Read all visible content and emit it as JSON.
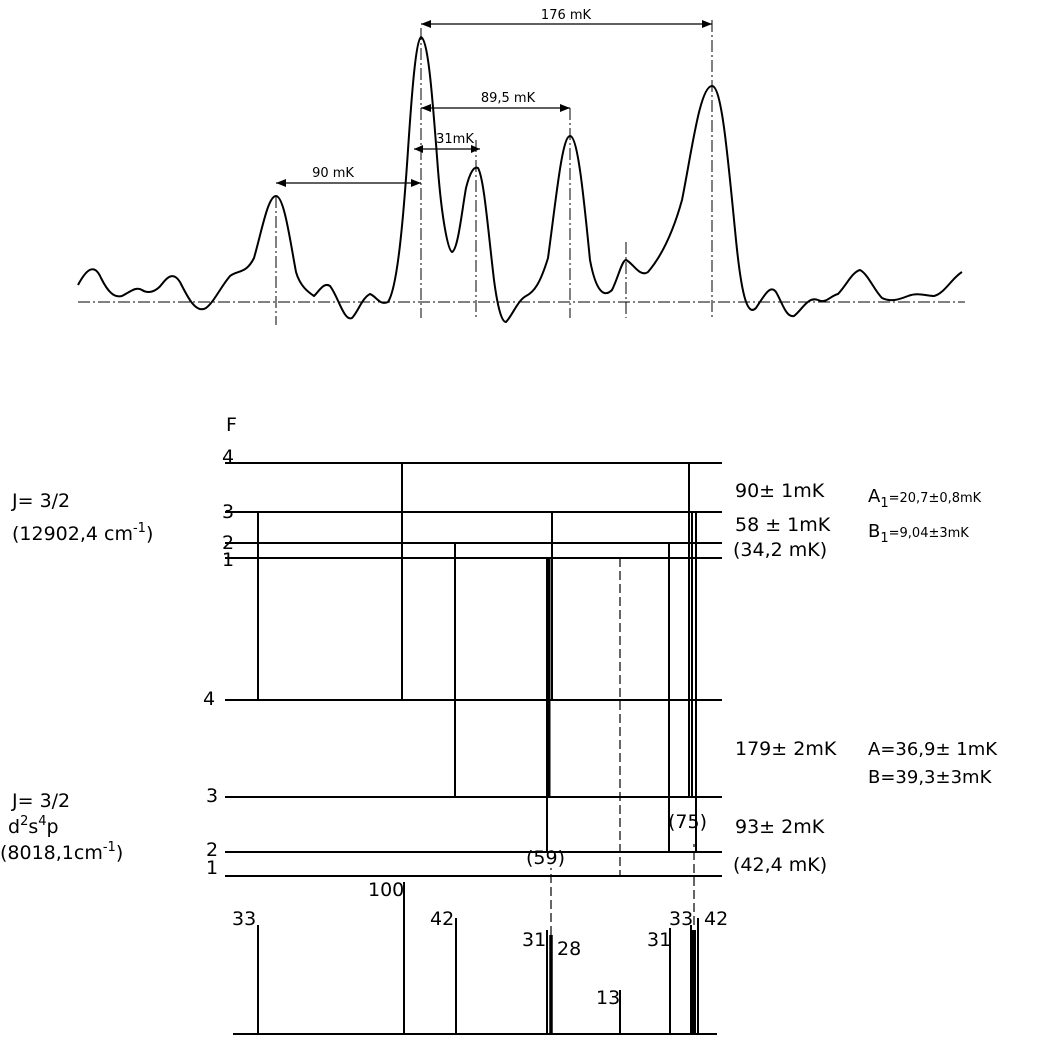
{
  "spectrum": {
    "separations": [
      "176 mK",
      "89,5 mK",
      "31mK",
      "90 mK"
    ]
  },
  "upper_level": {
    "label_line1": "J= 3/2",
    "label_line2": "(12902,4 cm",
    "label_line2_sup": "-1",
    "label_line2_end": ")",
    "f_header": "F",
    "f_values": [
      "4",
      "3",
      "2",
      "1"
    ],
    "intervals": [
      "90± 1mK",
      "58 ± 1mK",
      "(34,2 mK)"
    ],
    "constants": {
      "a": "A",
      "a_sub": "1",
      "a_val": "=20,7±0,8mK",
      "b": "B",
      "b_sub": "1",
      "b_val": "=9,04±3mK"
    }
  },
  "lower_level": {
    "label_line1": "J= 3/2",
    "label_line2_base": "d",
    "label_line2_sup1": "2",
    "label_line2_mid": "s",
    "label_line2_sup2": "4",
    "label_line2_end": "p",
    "label_line3": "(8018,1cm",
    "label_line3_sup": "-1",
    "label_line3_end": ")",
    "f_values": [
      "4",
      "3",
      "2",
      "1"
    ],
    "intervals": [
      "179± 2mK",
      "93± 2mK",
      "(42,4 mK)"
    ],
    "constants": [
      "A=36,9± 1mK",
      "B=39,3±3mK"
    ]
  },
  "intensities": [
    "33",
    "100",
    "42",
    "31",
    "28",
    "13",
    "31",
    "33",
    "42",
    "(59)",
    "(75)"
  ]
}
